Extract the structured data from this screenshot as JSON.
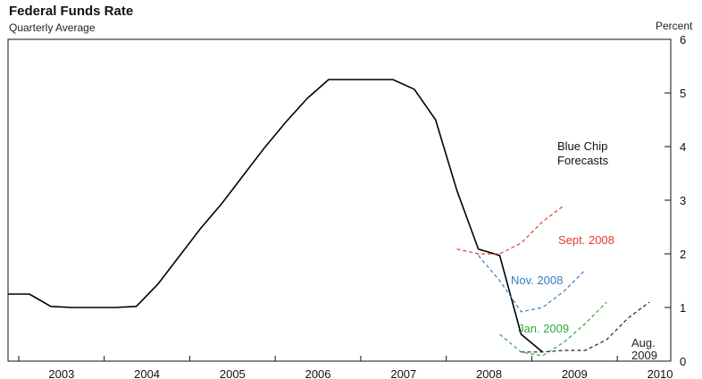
{
  "chart_data": {
    "type": "line",
    "title": "Federal Funds Rate",
    "subtitle": "Quarterly Average",
    "ylabel": "Percent",
    "ylim": [
      0,
      6
    ],
    "y_ticks": [
      "0",
      "1",
      "2",
      "3",
      "4",
      "5",
      "6"
    ],
    "x_tick_labels": [
      "2003",
      "2004",
      "2005",
      "2006",
      "2007",
      "2008",
      "2009",
      "2010"
    ],
    "annotation": "Blue Chip\nForecasts",
    "series": [
      {
        "kind": "actual",
        "color": "#000000",
        "style": "solid",
        "x": [
          2002.75,
          2003.0,
          2003.25,
          2003.5,
          2003.75,
          2004.0,
          2004.25,
          2004.5,
          2004.75,
          2005.0,
          2005.25,
          2005.5,
          2005.75,
          2006.0,
          2006.25,
          2006.5,
          2006.75,
          2007.0,
          2007.25,
          2007.5,
          2007.75,
          2008.0,
          2008.25,
          2008.5,
          2008.75,
          2009.0
        ],
        "y": [
          1.25,
          1.25,
          1.02,
          1.0,
          1.0,
          1.0,
          1.02,
          1.43,
          1.95,
          2.47,
          2.94,
          3.46,
          3.98,
          4.46,
          4.9,
          5.25,
          5.25,
          5.25,
          5.25,
          5.07,
          4.5,
          3.18,
          2.09,
          1.97,
          0.5,
          0.17
        ]
      },
      {
        "name": "Sept. 2008",
        "kind": "forecast",
        "color": "#e33a33",
        "style": "dashed",
        "x": [
          2008.0,
          2008.25,
          2008.5,
          2008.75,
          2009.0,
          2009.25
        ],
        "y": [
          2.09,
          2.0,
          2.0,
          2.2,
          2.6,
          2.9
        ]
      },
      {
        "name": "Nov. 2008",
        "kind": "forecast",
        "color": "#2f7fc6",
        "style": "dashed",
        "x": [
          2008.25,
          2008.5,
          2008.75,
          2009.0,
          2009.25,
          2009.5
        ],
        "y": [
          1.97,
          1.5,
          0.92,
          1.0,
          1.3,
          1.7
        ]
      },
      {
        "name": "Jan. 2009",
        "kind": "forecast",
        "color": "#2ea83c",
        "style": "dashed",
        "x": [
          2008.5,
          2008.75,
          2009.0,
          2009.25,
          2009.5,
          2009.75
        ],
        "y": [
          0.5,
          0.17,
          0.1,
          0.35,
          0.7,
          1.1
        ]
      },
      {
        "name": "Aug.\n2009",
        "kind": "forecast",
        "color": "#222222",
        "style": "dashed",
        "x": [
          2008.75,
          2009.0,
          2009.25,
          2009.5,
          2009.75,
          2010.0,
          2010.25
        ],
        "y": [
          0.17,
          0.17,
          0.2,
          0.2,
          0.4,
          0.8,
          1.1
        ]
      }
    ]
  }
}
